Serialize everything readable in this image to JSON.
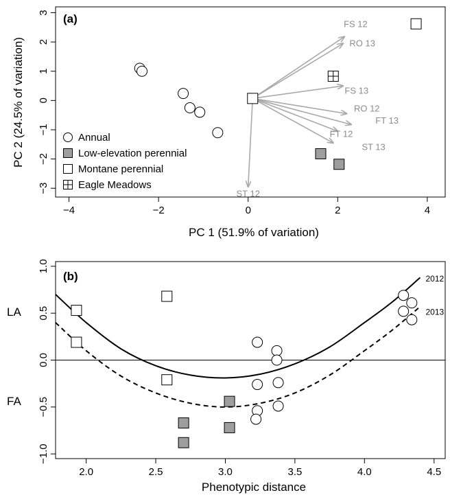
{
  "chart_data": [
    {
      "type": "scatter",
      "panel_label": "(a)",
      "xlabel": "PC 1 (51.9% of variation)",
      "ylabel": "PC 2 (24.5% of variation)",
      "xlim": [
        -4.3,
        4.4
      ],
      "ylim": [
        -3.3,
        3.2
      ],
      "xticks": [
        -4,
        -2,
        0,
        2,
        4
      ],
      "xtick_labels": [
        "−4",
        "−2",
        "0",
        "2",
        "4"
      ],
      "yticks": [
        -3,
        -2,
        -1,
        0,
        1,
        2,
        3
      ],
      "ytick_labels": [
        "−3",
        "−2",
        "−1",
        "0",
        "1",
        "2",
        "3"
      ],
      "grid": false,
      "legend_position": "bottom-left",
      "legend": [
        {
          "label": "Annual",
          "marker": "circle"
        },
        {
          "label": "Low-elevation perennial",
          "marker": "square-filled"
        },
        {
          "label": "Montane perennial",
          "marker": "square"
        },
        {
          "label": "Eagle Meadows",
          "marker": "square-cross"
        }
      ],
      "series": [
        {
          "marker": "circle",
          "x": [
            -2.42,
            -2.37,
            -1.45,
            -1.3,
            -1.08,
            -0.68
          ],
          "y": [
            1.1,
            1.0,
            0.24,
            -0.25,
            -0.4,
            -1.1
          ]
        },
        {
          "marker": "square-filled",
          "x": [
            1.62,
            2.03
          ],
          "y": [
            -1.82,
            -2.18
          ]
        },
        {
          "marker": "square",
          "x": [
            0.1,
            3.75
          ],
          "y": [
            0.07,
            2.62
          ]
        },
        {
          "marker": "square-cross",
          "x": [
            1.9
          ],
          "y": [
            0.83
          ]
        }
      ],
      "vectors": {
        "origin": [
          0.1,
          0.07
        ],
        "items": [
          {
            "label": "FS 12",
            "x": 2.15,
            "y": 2.18,
            "label_x": 2.4,
            "label_y": 2.6
          },
          {
            "label": "RO 13",
            "x": 2.12,
            "y": 1.95,
            "label_x": 2.55,
            "label_y": 1.95
          },
          {
            "label": "FS 13",
            "x": 2.12,
            "y": 0.5,
            "label_x": 2.42,
            "label_y": 0.32
          },
          {
            "label": "RO 12",
            "x": 2.2,
            "y": -0.45,
            "label_x": 2.65,
            "label_y": -0.28
          },
          {
            "label": "FT 13",
            "x": 2.3,
            "y": -0.82,
            "label_x": 3.1,
            "label_y": -0.7
          },
          {
            "label": "FT 12",
            "x": 2.0,
            "y": -1.05,
            "label_x": 2.08,
            "label_y": -1.15
          },
          {
            "label": "ST 13",
            "x": 1.9,
            "y": -1.45,
            "label_x": 2.8,
            "label_y": -1.6
          },
          {
            "label": "ST 12",
            "x": 0.0,
            "y": -2.95,
            "label_x": 0.0,
            "label_y": -3.2
          }
        ]
      }
    },
    {
      "type": "scatter",
      "panel_label": "(b)",
      "xlabel": "Phenotypic distance",
      "ylabel": "",
      "xlim": [
        1.78,
        4.58
      ],
      "ylim": [
        -1.05,
        1.05
      ],
      "xticks": [
        2.0,
        2.5,
        3.0,
        3.5,
        4.0,
        4.5
      ],
      "xtick_labels": [
        "2.0",
        "2.5",
        "3.0",
        "3.5",
        "4.0",
        "4.5"
      ],
      "yticks": [
        -1.0,
        -0.5,
        0.0,
        0.5,
        1.0
      ],
      "ytick_labels": [
        "−1.0",
        "−0.5",
        "0.0",
        "0.5",
        "1.0"
      ],
      "axis_side_labels": {
        "upper": "LA",
        "lower": "FA"
      },
      "grid": false,
      "reference_line_y": 0,
      "series": [
        {
          "marker": "square",
          "x": [
            1.93,
            1.93,
            2.58,
            2.58
          ],
          "y": [
            0.53,
            0.19,
            0.68,
            -0.21
          ]
        },
        {
          "marker": "square-filled",
          "x": [
            2.7,
            2.7,
            3.03,
            3.03
          ],
          "y": [
            -0.67,
            -0.88,
            -0.44,
            -0.72
          ]
        },
        {
          "marker": "circle",
          "x": [
            3.23,
            3.23,
            3.23,
            3.22,
            3.37,
            3.37,
            3.38,
            3.38,
            4.28,
            4.34,
            4.28,
            4.34
          ],
          "y": [
            0.19,
            -0.26,
            -0.54,
            -0.63,
            0.1,
            0.0,
            -0.24,
            -0.49,
            0.69,
            0.61,
            0.52,
            0.43
          ]
        }
      ],
      "fitted_curves": [
        {
          "name": "2012",
          "style": "solid",
          "x": [
            1.78,
            2.0,
            2.25,
            2.5,
            2.75,
            3.0,
            3.25,
            3.5,
            3.75,
            4.0,
            4.2,
            4.4
          ],
          "y": [
            0.7,
            0.4,
            0.12,
            -0.06,
            -0.16,
            -0.19,
            -0.15,
            -0.04,
            0.14,
            0.4,
            0.62,
            0.88
          ]
        },
        {
          "name": "2013",
          "style": "dashed",
          "x": [
            1.78,
            2.0,
            2.25,
            2.5,
            2.75,
            3.0,
            3.25,
            3.5,
            3.75,
            4.0,
            4.2,
            4.4
          ],
          "y": [
            0.4,
            0.1,
            -0.17,
            -0.35,
            -0.46,
            -0.5,
            -0.46,
            -0.35,
            -0.16,
            0.1,
            0.32,
            0.57
          ]
        }
      ]
    }
  ]
}
